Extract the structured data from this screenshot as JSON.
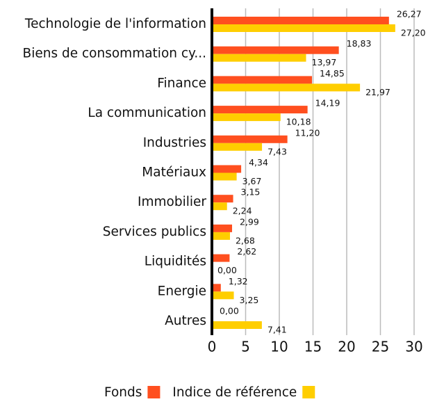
{
  "chart_data": {
    "type": "bar",
    "orientation": "horizontal",
    "categories": [
      "Technologie de l'information",
      "Biens de consommation cy...",
      "Finance",
      "La communication",
      "Industries",
      "Matériaux",
      "Immobilier",
      "Services publics",
      "Liquidités",
      "Energie",
      "Autres"
    ],
    "series": [
      {
        "name": "Fonds",
        "color": "#ff4f1f",
        "values": [
          26.27,
          18.83,
          14.85,
          14.19,
          11.2,
          4.34,
          3.15,
          2.99,
          2.62,
          1.32,
          0
        ],
        "value_labels": [
          "26,27",
          "18,83",
          "14,85",
          "14,19",
          "11,20",
          "4,34",
          "3,15",
          "2,99",
          "2,62",
          "1,32",
          "0,00"
        ]
      },
      {
        "name": "Indice de référence",
        "color": "#ffce00",
        "values": [
          27.2,
          13.97,
          21.97,
          10.18,
          7.43,
          3.67,
          2.24,
          2.68,
          0,
          3.25,
          7.41
        ],
        "value_labels": [
          "27,20",
          "13,97",
          "21,97",
          "10,18",
          "7,43",
          "3,67",
          "2,24",
          "2,68",
          "0,00",
          "3,25",
          "7,41"
        ]
      }
    ],
    "xlim": [
      0,
      30
    ],
    "xticks": [
      0,
      5,
      10,
      15,
      20,
      25,
      30
    ],
    "grid": true
  }
}
